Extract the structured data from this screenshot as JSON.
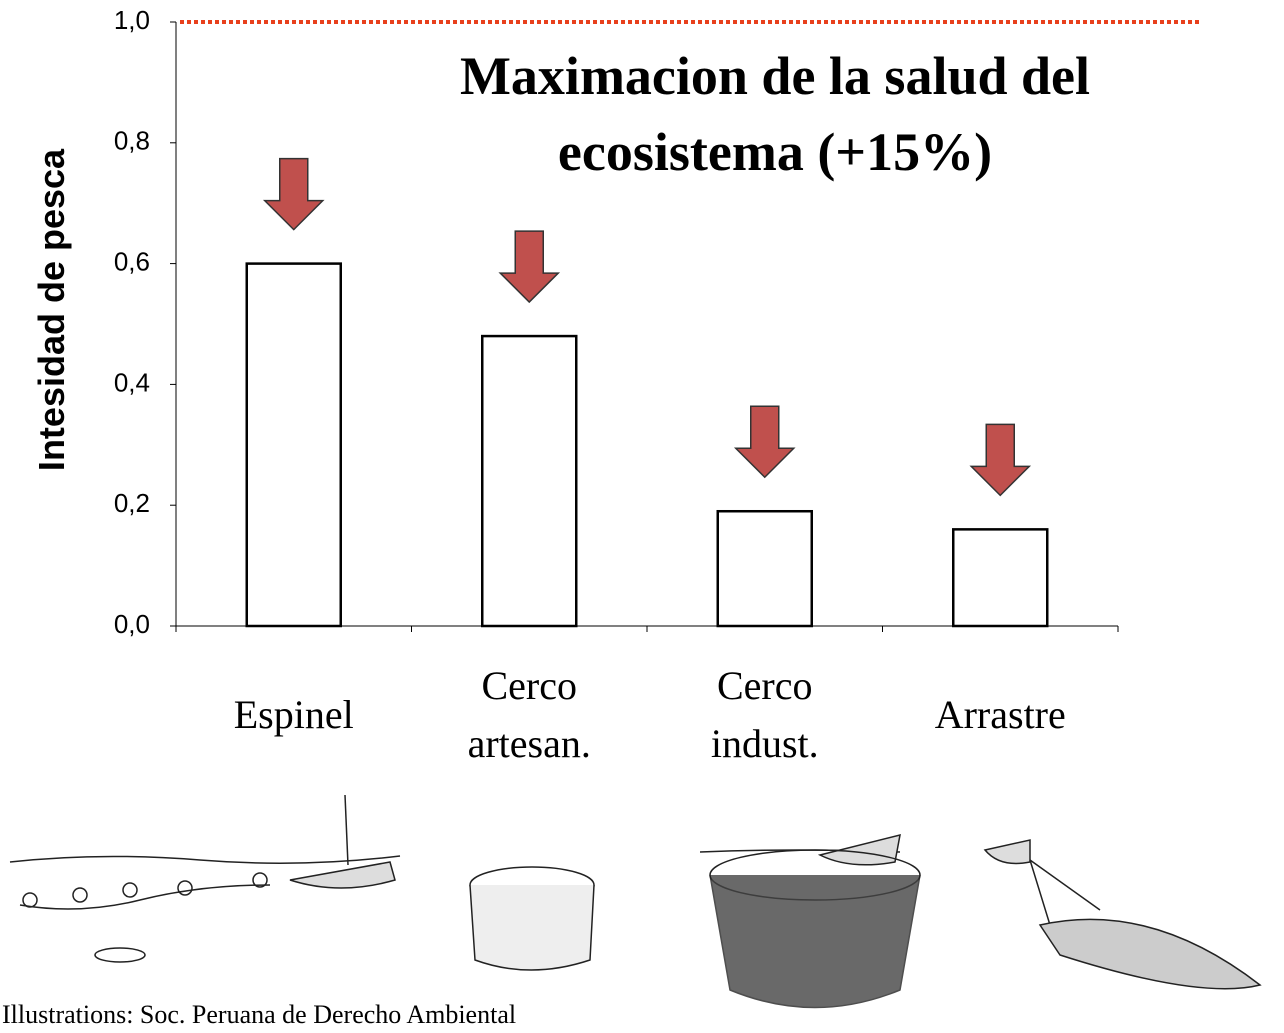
{
  "chart_data": {
    "type": "bar",
    "title": "Maximacion de la salud del ecosistema (+15%)",
    "y_label": "Intesidad de pesca",
    "categories": [
      "Espinel",
      "Cerco artesan.",
      "Cerco indust.",
      "Arrastre"
    ],
    "values": [
      0.6,
      0.48,
      0.19,
      0.16
    ],
    "color": "#ffffff",
    "edge_color": "#000000",
    "ylim": [
      0,
      1.0
    ],
    "yticks": [
      {
        "value": 0,
        "label": "0,0"
      },
      {
        "value": 0.2,
        "label": "0,2"
      },
      {
        "value": 0.4,
        "label": "0,4"
      },
      {
        "value": 0.6,
        "label": "0,6"
      },
      {
        "value": 0.8,
        "label": "0,8"
      },
      {
        "value": 1.0,
        "label": "1,0"
      }
    ],
    "reference_line": {
      "value": 1.0,
      "color": "#e8401c"
    },
    "arrow_color": "#c0504d",
    "credit": "Illustrations: Soc. Peruana de Derecho Ambiental"
  }
}
